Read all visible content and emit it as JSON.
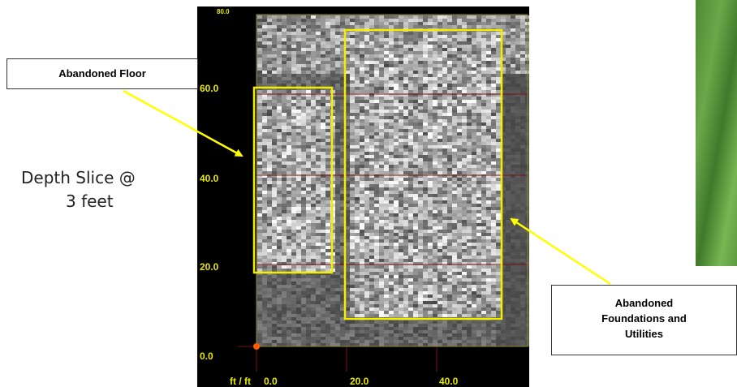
{
  "scan": {
    "y_ticks": [
      "60.0",
      "40.0",
      "20.0",
      "0.0"
    ],
    "y_top_tick": "80.0",
    "x_prefix": "ft / ft",
    "x_ticks": [
      "0.0",
      "20.0",
      "40.0"
    ]
  },
  "labels": {
    "floor": "Abandoned Floor",
    "foundations_line1": "Abandoned",
    "foundations_line2": "Foundations and",
    "foundations_line3": "Utilities",
    "depth_line1": "Depth Slice @",
    "depth_line2": "3 feet"
  },
  "colors": {
    "highlight": "#f2ee00",
    "arrow": "#ffff00",
    "axis_text": "#e8e800",
    "origin_marker": "#ff5a00"
  }
}
